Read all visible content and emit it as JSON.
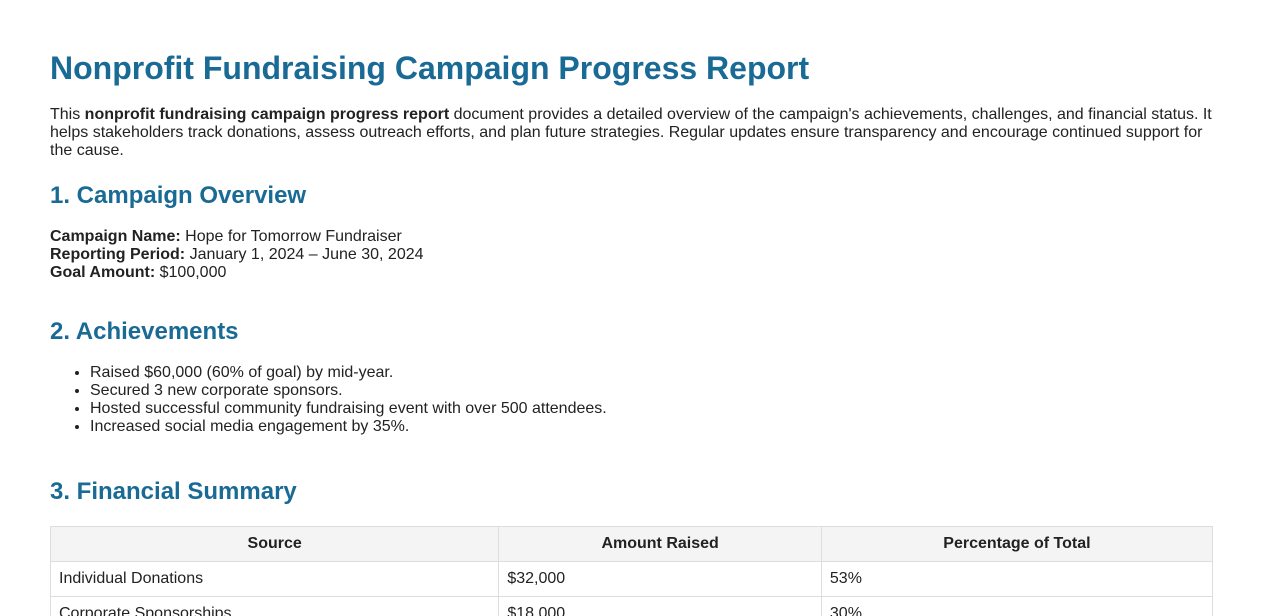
{
  "header": {
    "title": "Nonprofit Fundraising Campaign Progress Report"
  },
  "intro": {
    "lead": "This ",
    "bold": "nonprofit fundraising campaign progress report",
    "rest": " document provides a detailed overview of the campaign's achievements, challenges, and financial status. It helps stakeholders track donations, assess outreach efforts, and plan future strategies. Regular updates ensure transparency and encourage continued support for the cause."
  },
  "sections": [
    {
      "heading": "1. Campaign Overview",
      "fields": [
        {
          "label": "Campaign Name:",
          "value": "Hope for Tomorrow Fundraiser"
        },
        {
          "label": "Reporting Period:",
          "value": "January 1, 2024 – June 30, 2024"
        },
        {
          "label": "Goal Amount:",
          "value": "$100,000"
        }
      ]
    },
    {
      "heading": "2. Achievements",
      "items": [
        "Raised $60,000 (60% of goal) by mid-year.",
        "Secured 3 new corporate sponsors.",
        "Hosted successful community fundraising event with over 500 attendees.",
        "Increased social media engagement by 35%."
      ]
    },
    {
      "heading": "3. Financial Summary"
    }
  ],
  "table": {
    "columns": [
      "Source",
      "Amount Raised",
      "Percentage of Total"
    ],
    "rows": [
      [
        "Individual Donations",
        "$32,000",
        "53%"
      ],
      [
        "Corporate Sponsorships",
        "$18,000",
        "30%"
      ]
    ]
  }
}
